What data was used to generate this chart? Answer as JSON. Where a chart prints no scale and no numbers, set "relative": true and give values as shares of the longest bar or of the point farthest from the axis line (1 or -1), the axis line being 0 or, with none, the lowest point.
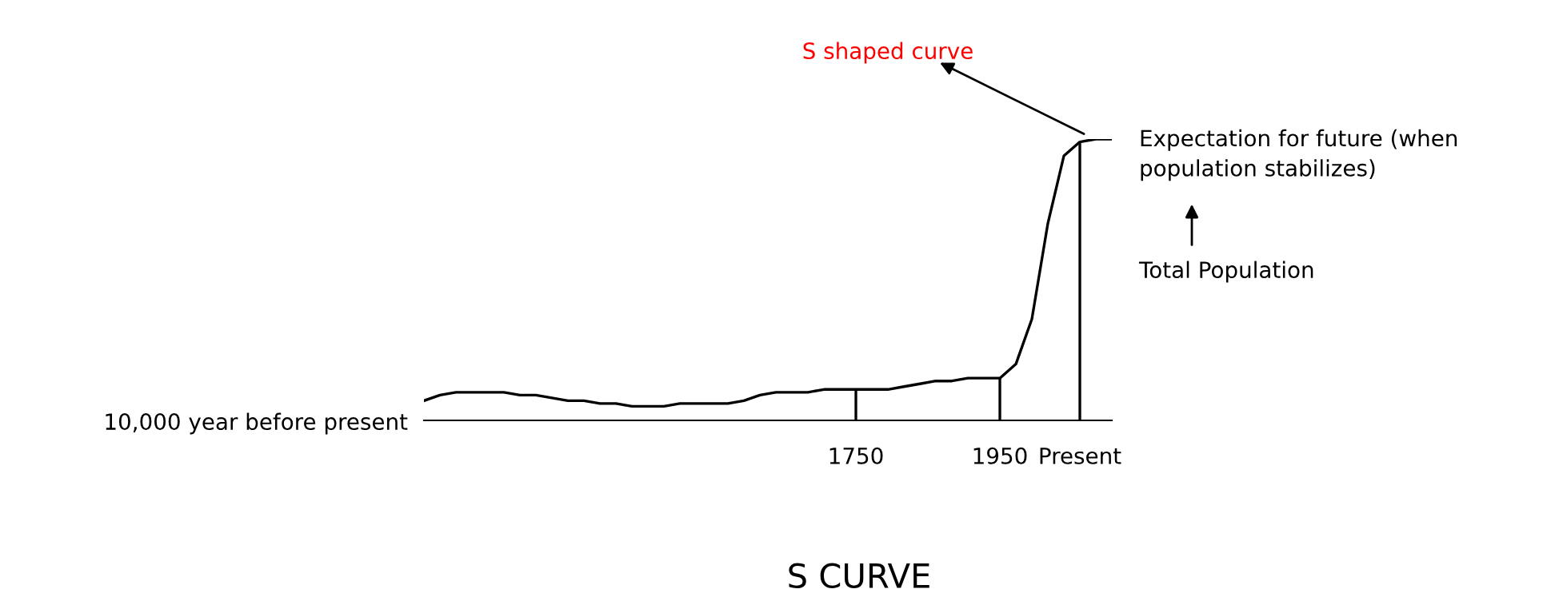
{
  "chart_data": {
    "type": "line",
    "relative": true,
    "title": "S CURVE",
    "categories": [
      null,
      null,
      null,
      null,
      null,
      null,
      null,
      null,
      null,
      null,
      null,
      null,
      null,
      null,
      null,
      null,
      null,
      null,
      null,
      null,
      null,
      null,
      null,
      null,
      null,
      null,
      null,
      "1750",
      null,
      null,
      null,
      null,
      null,
      null,
      null,
      null,
      "1950",
      null,
      null,
      null,
      null,
      "Present",
      null,
      null
    ],
    "series": [
      {
        "color": "#000000",
        "values": [
          0.07,
          0.09,
          0.1,
          0.1,
          0.1,
          0.1,
          0.09,
          0.09,
          0.08,
          0.07,
          0.07,
          0.06,
          0.06,
          0.05,
          0.05,
          0.05,
          0.06,
          0.06,
          0.06,
          0.06,
          0.07,
          0.09,
          0.1,
          0.1,
          0.1,
          0.11,
          0.11,
          0.11,
          0.11,
          0.11,
          0.12,
          0.13,
          0.14,
          0.14,
          0.15,
          0.15,
          0.15,
          0.2,
          0.36,
          0.7,
          0.94,
          0.99,
          1,
          1
        ]
      }
    ],
    "ref_lines": [
      {
        "axis": "x",
        "value": "1750"
      },
      {
        "axis": "x",
        "value": "1950"
      },
      {
        "axis": "x",
        "value": "Present"
      }
    ],
    "annotations": [
      "S shaped curve",
      "Expectation for future (when\npopulation stabilizes)",
      "Total Population",
      "10,000 year before present"
    ],
    "grid": false,
    "legend": false,
    "marker": "none",
    "line_style": "solid"
  }
}
